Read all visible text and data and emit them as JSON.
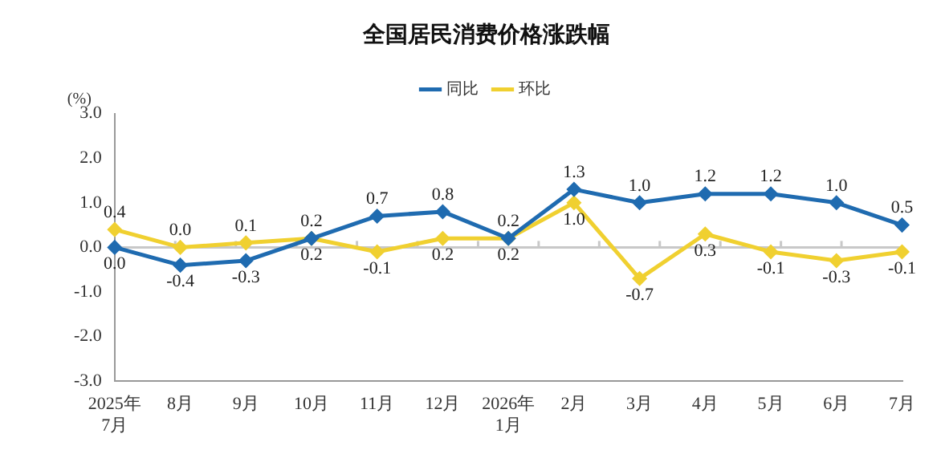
{
  "chart_data": {
    "type": "line",
    "title": "全国居民消费价格涨跌幅",
    "ylabel": "(%)",
    "categories": [
      "2025年\n7月",
      "8月",
      "9月",
      "10月",
      "11月",
      "12月",
      "2026年\n1月",
      "2月",
      "3月",
      "4月",
      "5月",
      "6月",
      "7月"
    ],
    "series": [
      {
        "name": "同比",
        "color": "#1f6bb0",
        "values": [
          0.0,
          -0.4,
          -0.3,
          0.2,
          0.7,
          0.8,
          0.2,
          1.3,
          1.0,
          1.2,
          1.2,
          1.0,
          0.5
        ],
        "value_labels": [
          "0.0",
          "-0.4",
          "-0.3",
          "0.2",
          "0.7",
          "0.8",
          "0.2",
          "1.3",
          "1.0",
          "1.2",
          "1.2",
          "1.0",
          "0.5"
        ]
      },
      {
        "name": "环比",
        "color": "#f0d030",
        "values": [
          0.4,
          0.0,
          0.1,
          0.2,
          -0.1,
          0.2,
          0.2,
          1.0,
          -0.7,
          0.3,
          -0.1,
          -0.3,
          -0.1
        ],
        "value_labels": [
          "0.4",
          "0.0",
          "0.1",
          "0.2",
          "-0.1",
          "0.2",
          "0.2",
          "1.0",
          "-0.7",
          "0.3",
          "-0.1",
          "-0.3",
          "-0.1"
        ]
      }
    ],
    "ylim": [
      -3,
      3
    ],
    "yticks": [
      {
        "value": -3,
        "label": "-3.0"
      },
      {
        "value": -2,
        "label": "-2.0"
      },
      {
        "value": -1,
        "label": "-1.0"
      },
      {
        "value": 0,
        "label": "0.0"
      },
      {
        "value": 1,
        "label": "1.0"
      },
      {
        "value": 2,
        "label": "2.0"
      },
      {
        "value": 3,
        "label": "3.0"
      }
    ],
    "ref_lines": [
      {
        "axis": "y",
        "value": 0,
        "color": "#c8c8c8"
      }
    ],
    "grid": false,
    "legend": "top",
    "marker": "diamond",
    "line_style": "solid"
  }
}
